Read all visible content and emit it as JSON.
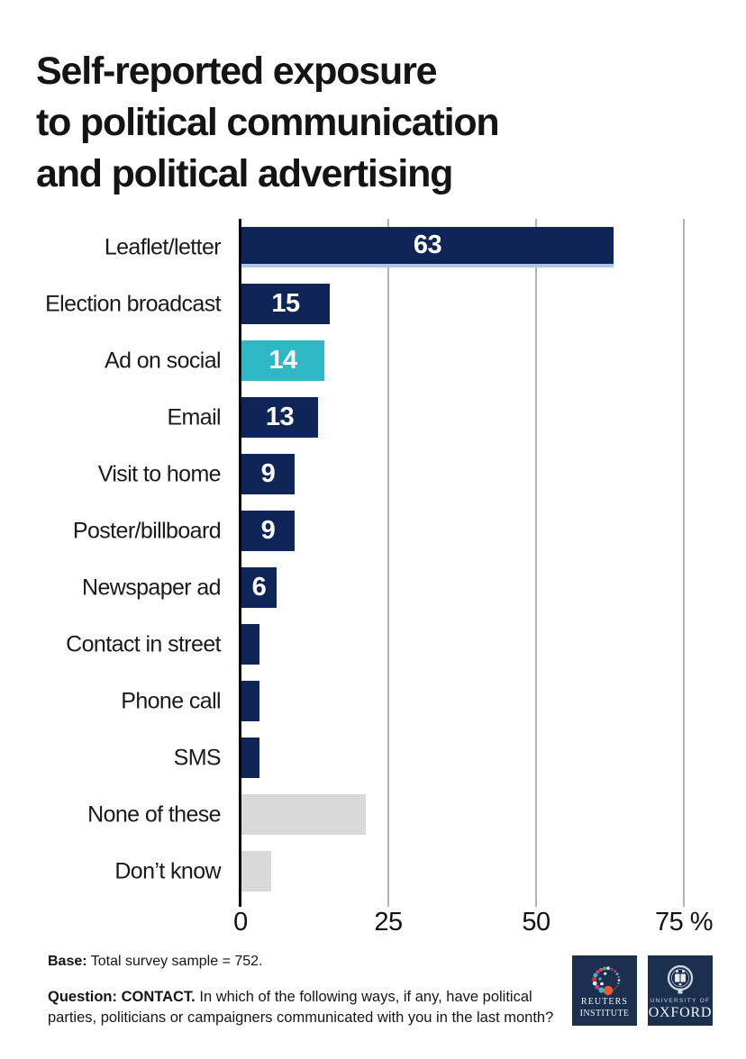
{
  "title": {
    "line1": "Self-reported exposure",
    "line2": "to political communication",
    "line3": "and political advertising"
  },
  "chart_data": {
    "type": "bar",
    "orientation": "horizontal",
    "title": "Self-reported exposure to political communication and political advertising",
    "categories": [
      "Leaflet/letter",
      "Election broadcast",
      "Ad on social",
      "Email",
      "Visit to home",
      "Poster/billboard",
      "Newspaper ad",
      "Contact in street",
      "Phone call",
      "SMS",
      "None of these",
      "Don’t know"
    ],
    "values": [
      63,
      15,
      14,
      13,
      9,
      9,
      6,
      3,
      3,
      3,
      21,
      5
    ],
    "data_labels": [
      "63",
      "15",
      "14",
      "13",
      "9",
      "9",
      "6",
      "",
      "",
      "",
      "",
      ""
    ],
    "bar_color_keys": [
      "navy",
      "navy",
      "teal",
      "navy",
      "navy",
      "navy",
      "navy",
      "navy",
      "navy",
      "navy",
      "gray",
      "gray"
    ],
    "x_ticks": [
      0,
      25,
      50,
      75
    ],
    "x_tick_labels": [
      "0",
      "25",
      "50",
      "75 %"
    ],
    "xlabel": "",
    "ylabel": "",
    "xlim": [
      0,
      77.5
    ],
    "grid": "vertical-only",
    "legend": false
  },
  "palette": {
    "navy": "#0f2557",
    "teal": "#2eb7c5",
    "gray": "#d9d9d9",
    "gridline": "#b3b3b3",
    "axis": "#000000",
    "leaflet_underline": "#a9c7e9",
    "logo_bg": "#1b2f4f"
  },
  "footer": {
    "base_label": "Base:",
    "base_text": " Total survey sample = 752.",
    "question_label": "Question: CONTACT.",
    "question_text": " In which of the following ways, if any, have political parties, politicians or campaigners communicated with you in the last month?"
  },
  "logos": {
    "reuters": {
      "line1": "REUTERS",
      "line2": "INSTITUTE"
    },
    "oxford": {
      "line1": "UNIVERSITY OF",
      "line2": "OXFORD"
    }
  }
}
